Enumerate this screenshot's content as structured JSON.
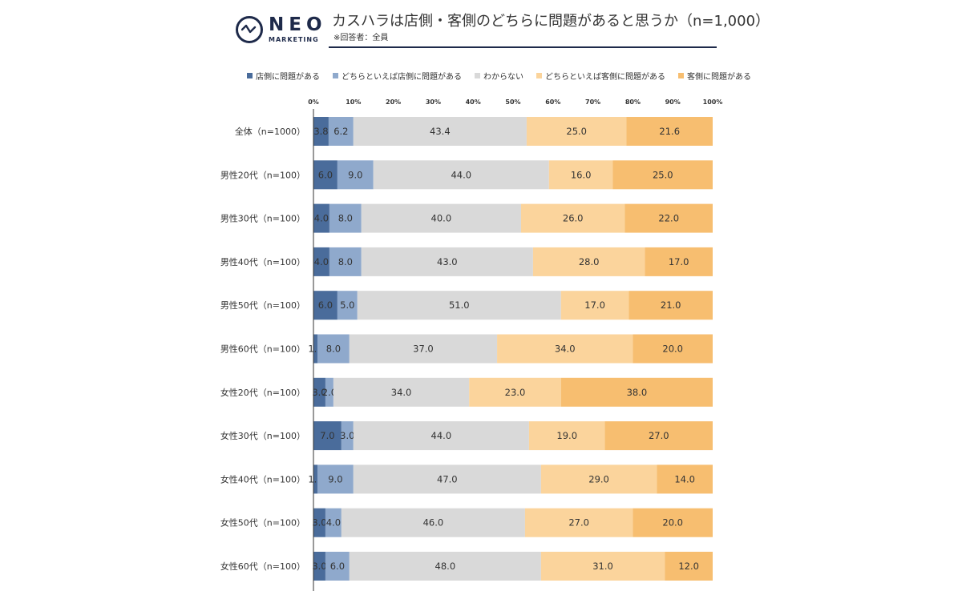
{
  "brand": {
    "name": "NEO",
    "sub": "MARKETING"
  },
  "header": {
    "title": "カスハラは店側・客側のどちらに問題があると思うか（n=1,000）",
    "subtitle": "※回答者：全員"
  },
  "colors": {
    "series": [
      "#4a6c9b",
      "#8fa9cc",
      "#d9d9d9",
      "#fbd49c",
      "#f7be70"
    ],
    "axis": "#333333",
    "rule": "#1e2a4a"
  },
  "chart_data": {
    "type": "bar",
    "orientation": "horizontal",
    "stacked": "percent",
    "title": "カスハラは店側・客側のどちらに問題があると思うか（n=1,000）",
    "xlim": [
      0,
      100
    ],
    "x_ticks": [
      "0%",
      "10%",
      "20%",
      "30%",
      "40%",
      "50%",
      "60%",
      "70%",
      "80%",
      "90%",
      "100%"
    ],
    "legend_position": "top",
    "grid": false,
    "categories": [
      "全体（n=1000）",
      "男性20代（n=100）",
      "男性30代（n=100）",
      "男性40代（n=100）",
      "男性50代（n=100）",
      "男性60代（n=100）",
      "女性20代（n=100）",
      "女性30代（n=100）",
      "女性40代（n=100）",
      "女性50代（n=100）",
      "女性60代（n=100）"
    ],
    "series": [
      {
        "name": "店側に問題がある",
        "values": [
          3.8,
          6.0,
          4.0,
          4.0,
          6.0,
          1.0,
          3.0,
          7.0,
          1.0,
          3.0,
          3.0
        ]
      },
      {
        "name": "どちらといえば店側に問題がある",
        "values": [
          6.2,
          9.0,
          8.0,
          8.0,
          5.0,
          8.0,
          2.0,
          3.0,
          9.0,
          4.0,
          6.0
        ]
      },
      {
        "name": "わからない",
        "values": [
          43.4,
          44.0,
          40.0,
          43.0,
          51.0,
          37.0,
          34.0,
          44.0,
          47.0,
          46.0,
          48.0
        ]
      },
      {
        "name": "どちらといえば客側に問題がある",
        "values": [
          25.0,
          16.0,
          26.0,
          28.0,
          17.0,
          34.0,
          23.0,
          19.0,
          29.0,
          27.0,
          31.0
        ]
      },
      {
        "name": "客側に問題がある",
        "values": [
          21.6,
          25.0,
          22.0,
          17.0,
          21.0,
          20.0,
          38.0,
          27.0,
          14.0,
          20.0,
          12.0
        ]
      }
    ]
  }
}
